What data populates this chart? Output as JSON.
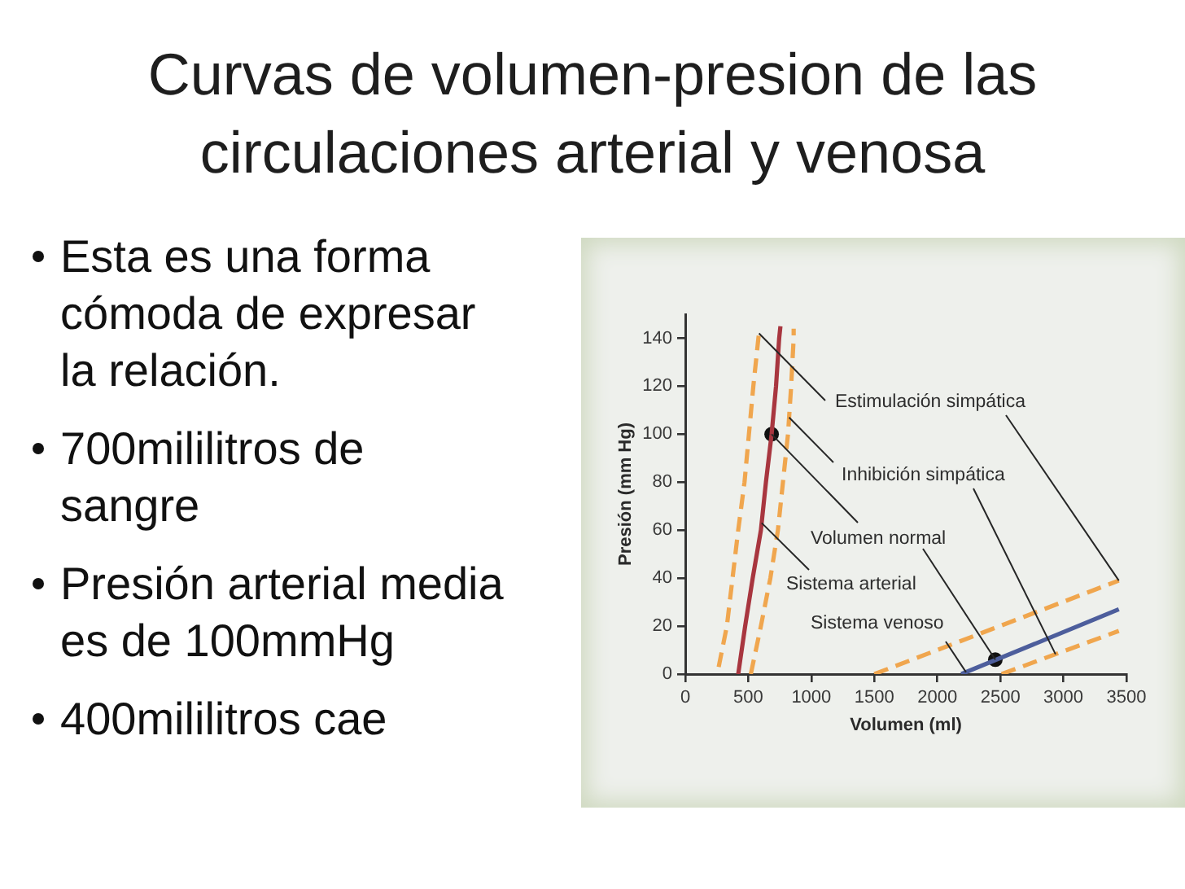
{
  "chart_data": {
    "type": "line",
    "title": "Curvas de volumen-presion de las circulaciones arterial y venosa",
    "annotations": [
      "Esta es una forma cómoda de expresar la relación.",
      "700mililitros de sangre",
      "Presión arterial media es de 100mmHg",
      "400mililitros cae"
    ],
    "xlabel": "Volumen (ml)",
    "ylabel": "Presión (mm Hg)",
    "xlim": [
      0,
      3500
    ],
    "xticks": [
      0,
      500,
      1000,
      1500,
      2000,
      2500,
      3000,
      3500
    ],
    "ylim": [
      0,
      150
    ],
    "yticks": [
      0,
      20,
      40,
      60,
      80,
      100,
      120,
      140
    ],
    "series": [
      {
        "name": "Sistema arterial",
        "color": "#a8363f",
        "line_style": "solid",
        "x": [
          420,
          475,
          535,
          600,
          640,
          685,
          720,
          745,
          755
        ],
        "values": [
          0,
          20,
          40,
          60,
          80,
          100,
          120,
          140,
          145
        ]
      },
      {
        "name": "Sistema venoso",
        "color": "#4d5e9c",
        "line_style": "solid",
        "x": [
          2190,
          3440
        ],
        "values": [
          0,
          27
        ]
      },
      {
        "name": "Estimulación simpática",
        "color": "#f0a64e",
        "line_style": "dashed",
        "x": [
          265,
          330,
          375,
          420,
          470,
          505,
          540,
          580,
          590,
          null,
          1500,
          3440
        ],
        "values": [
          3,
          20,
          40,
          60,
          80,
          100,
          120,
          140,
          144,
          null,
          0,
          39
        ]
      },
      {
        "name": "Inhibición simpática",
        "color": "#f0a64e",
        "line_style": "dashed",
        "x": [
          520,
          600,
          675,
          735,
          775,
          815,
          840,
          860,
          860,
          null,
          2510,
          3440
        ],
        "values": [
          0,
          20,
          40,
          60,
          80,
          100,
          120,
          140,
          144,
          null,
          0,
          18
        ]
      },
      {
        "name": "Volumen normal",
        "type": "scatter",
        "color": "#111111",
        "marker": "circle",
        "x": [
          685,
          2460
        ],
        "values": [
          100,
          6
        ]
      }
    ]
  }
}
